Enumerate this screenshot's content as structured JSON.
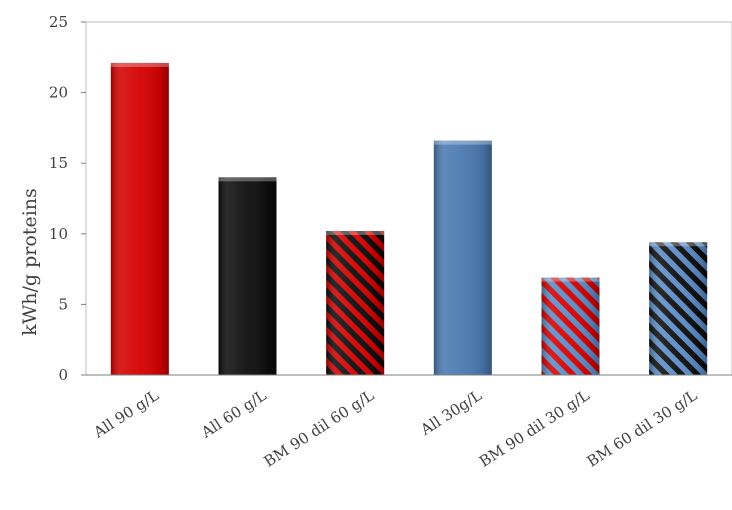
{
  "chart_data": {
    "type": "bar",
    "title": "",
    "xlabel": "",
    "ylabel": "kWh/g proteins",
    "ylim": [
      0,
      25
    ],
    "yticks": [
      0,
      5,
      10,
      15,
      20,
      25
    ],
    "grid": false,
    "categories": [
      "All 90 g/L",
      "All 60 g/L",
      "BM 90 dil 60 g/L",
      "All 30g/L",
      "BM 90 dil 30 g/L",
      "BM 60 dil 30 g/L"
    ],
    "values": [
      22.1,
      14.0,
      10.2,
      16.6,
      6.9,
      9.4
    ],
    "bar_styles": [
      {
        "fill": "#d40000",
        "pattern": "solid"
      },
      {
        "fill": "#0d0d0d",
        "pattern": "solid"
      },
      {
        "fill": "#0d0d0d",
        "pattern": "diagonal-stripes",
        "stripe": "#d40000"
      },
      {
        "fill": "#4a79b0",
        "pattern": "solid"
      },
      {
        "fill": "#5b8cc6",
        "pattern": "diagonal-stripes",
        "stripe": "#d40000"
      },
      {
        "fill": "#5b8cc6",
        "pattern": "diagonal-stripes",
        "stripe": "#0d0d0d"
      }
    ]
  }
}
